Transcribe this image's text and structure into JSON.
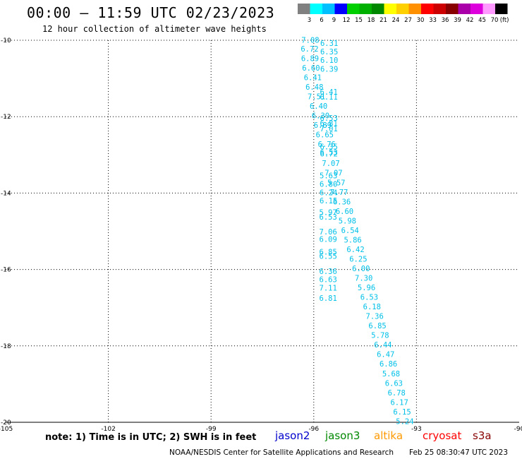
{
  "header": {
    "title": "00:00 – 11:59 UTC 02/23/2023",
    "subtitle": "12 hour collection of altimeter wave heights"
  },
  "legend": {
    "unit": "(ft)",
    "bins": [
      {
        "label": "3",
        "color": "#808080"
      },
      {
        "label": "6",
        "color": "#00ffff"
      },
      {
        "label": "9",
        "color": "#00c0ff"
      },
      {
        "label": "12",
        "color": "#0000ff"
      },
      {
        "label": "15",
        "color": "#00d000"
      },
      {
        "label": "18",
        "color": "#00b000"
      },
      {
        "label": "21",
        "color": "#008800"
      },
      {
        "label": "24",
        "color": "#ffff00"
      },
      {
        "label": "27",
        "color": "#ffd000"
      },
      {
        "label": "30",
        "color": "#ff9000"
      },
      {
        "label": "33",
        "color": "#ff0000"
      },
      {
        "label": "36",
        "color": "#cc0000"
      },
      {
        "label": "39",
        "color": "#880000"
      },
      {
        "label": "42",
        "color": "#aa00aa"
      },
      {
        "label": "45",
        "color": "#dd00dd"
      },
      {
        "label": "70",
        "color": "#ff99ff"
      },
      {
        "label": "",
        "color": "#000000"
      }
    ]
  },
  "axes": {
    "x_ticks": [
      "-105",
      "-102",
      "-99",
      "-96",
      "-93",
      "-90"
    ],
    "y_ticks": [
      "-10",
      "-12",
      "-14",
      "-16",
      "-18",
      "-20"
    ]
  },
  "tracks": [
    {
      "name": "track-a",
      "color": "#00c0e8",
      "points": [
        {
          "lon": -96.1,
          "lat": -9.99,
          "v": "7.08"
        },
        {
          "lon": -96.12,
          "lat": -10.22,
          "v": "6.72"
        },
        {
          "lon": -96.11,
          "lat": -10.47,
          "v": "6.89"
        },
        {
          "lon": -96.08,
          "lat": -10.72,
          "v": "6.60"
        },
        {
          "lon": -96.03,
          "lat": -10.97,
          "v": "6.41"
        },
        {
          "lon": -95.98,
          "lat": -11.22,
          "v": "6.48"
        },
        {
          "lon": -95.92,
          "lat": -11.47,
          "v": "7.51"
        },
        {
          "lon": -95.86,
          "lat": -11.72,
          "v": "6.40"
        },
        {
          "lon": -95.8,
          "lat": -11.97,
          "v": "6.30"
        },
        {
          "lon": -95.74,
          "lat": -12.22,
          "v": "6.89"
        },
        {
          "lon": -95.68,
          "lat": -12.47,
          "v": "6.65"
        },
        {
          "lon": -95.62,
          "lat": -12.72,
          "v": "6.76"
        },
        {
          "lon": -95.56,
          "lat": -12.97,
          "v": "6.72"
        },
        {
          "lon": -95.5,
          "lat": -13.22,
          "v": "7.07"
        },
        {
          "lon": -95.42,
          "lat": -13.47,
          "v": "7.07"
        },
        {
          "lon": -95.34,
          "lat": -13.72,
          "v": "5.57"
        },
        {
          "lon": -95.26,
          "lat": -13.97,
          "v": "7.77"
        },
        {
          "lon": -95.18,
          "lat": -14.22,
          "v": "6.36"
        },
        {
          "lon": -95.1,
          "lat": -14.47,
          "v": "6.60"
        },
        {
          "lon": -95.02,
          "lat": -14.72,
          "v": "5.98"
        },
        {
          "lon": -94.94,
          "lat": -14.97,
          "v": "6.54"
        },
        {
          "lon": -94.86,
          "lat": -15.22,
          "v": "5.86"
        },
        {
          "lon": -94.78,
          "lat": -15.47,
          "v": "6.42"
        },
        {
          "lon": -94.7,
          "lat": -15.72,
          "v": "6.25"
        },
        {
          "lon": -94.62,
          "lat": -15.97,
          "v": "6.00"
        },
        {
          "lon": -94.54,
          "lat": -16.22,
          "v": "7.30"
        },
        {
          "lon": -94.46,
          "lat": -16.47,
          "v": "5.96"
        },
        {
          "lon": -94.38,
          "lat": -16.72,
          "v": "6.53"
        },
        {
          "lon": -94.3,
          "lat": -16.97,
          "v": "6.18"
        },
        {
          "lon": -94.22,
          "lat": -17.22,
          "v": "7.36"
        },
        {
          "lon": -94.14,
          "lat": -17.47,
          "v": "6.85"
        },
        {
          "lon": -94.06,
          "lat": -17.72,
          "v": "5.78"
        },
        {
          "lon": -93.98,
          "lat": -17.97,
          "v": "6.44"
        },
        {
          "lon": -93.9,
          "lat": -18.22,
          "v": "6.47"
        },
        {
          "lon": -93.82,
          "lat": -18.47,
          "v": "6.86"
        },
        {
          "lon": -93.74,
          "lat": -18.72,
          "v": "5.68"
        },
        {
          "lon": -93.66,
          "lat": -18.97,
          "v": "6.63"
        },
        {
          "lon": -93.58,
          "lat": -19.22,
          "v": "6.78"
        },
        {
          "lon": -93.5,
          "lat": -19.47,
          "v": "6.17"
        },
        {
          "lon": -93.42,
          "lat": -19.72,
          "v": "6.15"
        },
        {
          "lon": -93.34,
          "lat": -19.97,
          "v": "5.24"
        }
      ]
    },
    {
      "name": "track-b",
      "color": "#00c0e8",
      "points": [
        {
          "lon": -95.55,
          "lat": -10.07,
          "v": "6.31"
        },
        {
          "lon": -95.55,
          "lat": -10.3,
          "v": "6.35"
        },
        {
          "lon": -95.55,
          "lat": -10.52,
          "v": "6.10"
        },
        {
          "lon": -95.55,
          "lat": -10.75,
          "v": "6.39"
        },
        {
          "lon": -95.56,
          "lat": -11.35,
          "v": "6.41"
        },
        {
          "lon": -95.56,
          "lat": -11.48,
          "v": "6.11"
        },
        {
          "lon": -95.56,
          "lat": -12.03,
          "v": "6.53"
        },
        {
          "lon": -95.56,
          "lat": -12.17,
          "v": "6.81"
        },
        {
          "lon": -95.56,
          "lat": -12.31,
          "v": "7.01"
        },
        {
          "lon": -95.56,
          "lat": -12.78,
          "v": "6.35"
        },
        {
          "lon": -95.56,
          "lat": -12.93,
          "v": "6.53"
        },
        {
          "lon": -95.57,
          "lat": -13.54,
          "v": "5.63"
        },
        {
          "lon": -95.57,
          "lat": -13.76,
          "v": "6.80"
        },
        {
          "lon": -95.57,
          "lat": -13.98,
          "v": "6.24"
        },
        {
          "lon": -95.57,
          "lat": -14.2,
          "v": "6.15"
        },
        {
          "lon": -95.58,
          "lat": -14.5,
          "v": "5.97"
        },
        {
          "lon": -95.58,
          "lat": -14.62,
          "v": "6.53"
        },
        {
          "lon": -95.58,
          "lat": -15.01,
          "v": "7.06"
        },
        {
          "lon": -95.58,
          "lat": -15.2,
          "v": "6.09"
        },
        {
          "lon": -95.58,
          "lat": -15.54,
          "v": "6.85"
        },
        {
          "lon": -95.58,
          "lat": -15.65,
          "v": "6.55"
        },
        {
          "lon": -95.58,
          "lat": -16.04,
          "v": "6.36"
        },
        {
          "lon": -95.58,
          "lat": -16.26,
          "v": "6.63"
        },
        {
          "lon": -95.58,
          "lat": -16.48,
          "v": "7.11"
        },
        {
          "lon": -95.58,
          "lat": -16.75,
          "v": "6.81"
        }
      ]
    }
  ],
  "chart_data": {
    "type": "scatter",
    "title": "00:00 – 11:59 UTC 02/23/2023",
    "subtitle": "12 hour collection of altimeter wave heights",
    "xlabel": "",
    "ylabel": "",
    "xlim": [
      -105,
      -90
    ],
    "ylim": [
      -20,
      -10
    ],
    "grid": true
  },
  "footer": {
    "note": "note:  1) Time is in UTC;  2) SWH is in feet",
    "credit": "NOAA/NESDIS Center for Satellite Applications and Research",
    "date": "Feb 25 08:30:47 UTC 2023"
  },
  "satellites": [
    {
      "label": "jason2",
      "color": "#0000cc"
    },
    {
      "label": "jason3",
      "color": "#008800"
    },
    {
      "label": "altika",
      "color": "#ff9900"
    },
    {
      "label": "cryosat",
      "color": "#ff0000"
    },
    {
      "label": "s3a",
      "color": "#880000"
    }
  ]
}
